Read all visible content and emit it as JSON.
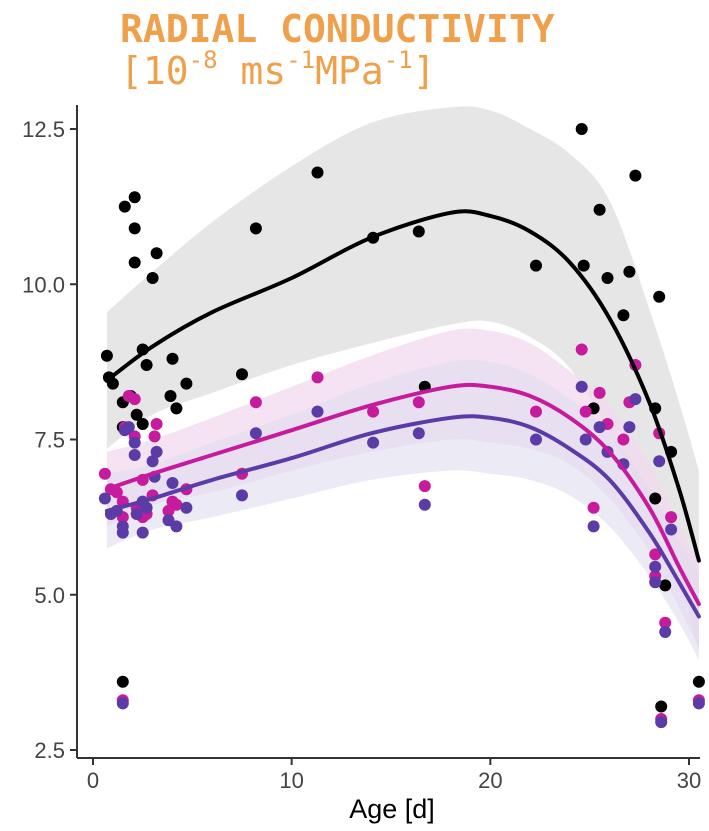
{
  "chart_data": {
    "type": "scatter",
    "title": {
      "main": "RADIAL CONDUCTIVITY",
      "unit_open": "[10",
      "unit_exp1": "-8",
      "unit_mid1": " ms",
      "unit_exp2": "-1",
      "unit_mid2": "MPa",
      "unit_exp3": "-1",
      "unit_close": "]"
    },
    "xlabel": "Age [d]",
    "ylabel": "",
    "xlim": [
      -0.5,
      31
    ],
    "ylim": [
      2.4,
      12.9
    ],
    "xticks": [
      0,
      10,
      20,
      30
    ],
    "yticks": [
      2.5,
      5.0,
      7.5,
      10.0,
      12.5
    ],
    "ytick_labels": [
      "2.5",
      "5.0",
      "7.5",
      "10.0",
      "12.5"
    ],
    "grid": false,
    "legend": "none",
    "colors": {
      "black": "#000000",
      "magenta": "#c51b9c",
      "purple": "#5b3ba6",
      "band_black": "#e6e6e6",
      "band_magenta": "#f2d9ef",
      "band_purple": "#e0dcef",
      "title": "#f0a04b"
    },
    "series": [
      {
        "color": "#000000",
        "points": [
          [
            0.7,
            8.85
          ],
          [
            0.8,
            8.5
          ],
          [
            1.0,
            8.4
          ],
          [
            1.5,
            3.6
          ],
          [
            1.5,
            8.1
          ],
          [
            1.5,
            7.7
          ],
          [
            1.6,
            11.25
          ],
          [
            1.9,
            8.2
          ],
          [
            2.1,
            11.4
          ],
          [
            2.1,
            10.9
          ],
          [
            2.1,
            10.35
          ],
          [
            2.2,
            7.9
          ],
          [
            2.5,
            8.95
          ],
          [
            2.5,
            7.75
          ],
          [
            2.7,
            8.7
          ],
          [
            3.0,
            10.1
          ],
          [
            3.2,
            10.5
          ],
          [
            3.9,
            8.2
          ],
          [
            4.0,
            8.8
          ],
          [
            4.2,
            8.0
          ],
          [
            4.7,
            8.4
          ],
          [
            7.5,
            8.55
          ],
          [
            8.2,
            10.9
          ],
          [
            11.3,
            11.8
          ],
          [
            14.1,
            10.75
          ],
          [
            16.4,
            10.85
          ],
          [
            16.7,
            8.35
          ],
          [
            22.3,
            10.3
          ],
          [
            24.6,
            12.5
          ],
          [
            24.7,
            10.3
          ],
          [
            25.2,
            8.0
          ],
          [
            25.5,
            11.2
          ],
          [
            25.9,
            10.1
          ],
          [
            26.7,
            9.5
          ],
          [
            27.0,
            10.2
          ],
          [
            27.3,
            11.75
          ],
          [
            28.3,
            8.0
          ],
          [
            28.3,
            6.55
          ],
          [
            28.5,
            9.8
          ],
          [
            28.6,
            3.2
          ],
          [
            28.8,
            5.15
          ],
          [
            29.1,
            7.3
          ],
          [
            30.5,
            3.6
          ]
        ],
        "fit": [
          [
            0.7,
            8.45
          ],
          [
            3,
            9.0
          ],
          [
            6,
            9.55
          ],
          [
            10,
            10.1
          ],
          [
            14,
            10.75
          ],
          [
            18,
            11.15
          ],
          [
            20,
            11.1
          ],
          [
            22,
            10.85
          ],
          [
            24,
            10.35
          ],
          [
            26,
            9.45
          ],
          [
            28,
            8.1
          ],
          [
            29.5,
            6.7
          ],
          [
            30.5,
            5.55
          ]
        ],
        "band_upper": [
          [
            0.7,
            9.55
          ],
          [
            3,
            10.2
          ],
          [
            6,
            11.0
          ],
          [
            10,
            11.9
          ],
          [
            14,
            12.6
          ],
          [
            18,
            12.85
          ],
          [
            20,
            12.8
          ],
          [
            22,
            12.5
          ],
          [
            24,
            12.1
          ],
          [
            26,
            11.35
          ],
          [
            28,
            9.6
          ],
          [
            29.5,
            8.1
          ],
          [
            30.5,
            7.0
          ]
        ],
        "band_lower": [
          [
            0.7,
            7.35
          ],
          [
            3,
            7.9
          ],
          [
            6,
            8.25
          ],
          [
            10,
            8.7
          ],
          [
            14,
            9.05
          ],
          [
            18,
            9.35
          ],
          [
            20,
            9.4
          ],
          [
            22,
            9.15
          ],
          [
            24,
            8.65
          ],
          [
            26,
            7.6
          ],
          [
            28,
            6.4
          ],
          [
            29.5,
            5.3
          ],
          [
            30.5,
            4.1
          ]
        ]
      },
      {
        "color": "#c51b9c",
        "points": [
          [
            0.6,
            6.95
          ],
          [
            0.9,
            6.7
          ],
          [
            1.2,
            6.65
          ],
          [
            1.5,
            3.3
          ],
          [
            1.5,
            6.25
          ],
          [
            1.5,
            6.5
          ],
          [
            1.6,
            7.7
          ],
          [
            1.8,
            8.2
          ],
          [
            2.1,
            8.15
          ],
          [
            2.1,
            7.55
          ],
          [
            2.2,
            6.4
          ],
          [
            2.5,
            6.25
          ],
          [
            2.5,
            6.85
          ],
          [
            2.7,
            6.3
          ],
          [
            3.0,
            6.6
          ],
          [
            3.1,
            7.55
          ],
          [
            3.2,
            7.75
          ],
          [
            3.8,
            6.35
          ],
          [
            4.0,
            6.5
          ],
          [
            4.2,
            6.45
          ],
          [
            4.7,
            6.7
          ],
          [
            7.5,
            6.95
          ],
          [
            8.2,
            8.1
          ],
          [
            11.3,
            8.5
          ],
          [
            14.1,
            7.95
          ],
          [
            16.4,
            8.1
          ],
          [
            16.7,
            6.75
          ],
          [
            22.3,
            7.95
          ],
          [
            24.6,
            8.95
          ],
          [
            24.8,
            7.95
          ],
          [
            25.2,
            6.4
          ],
          [
            25.5,
            8.25
          ],
          [
            25.9,
            7.75
          ],
          [
            26.7,
            7.5
          ],
          [
            27.0,
            8.1
          ],
          [
            27.3,
            8.7
          ],
          [
            28.3,
            5.65
          ],
          [
            28.3,
            5.3
          ],
          [
            28.5,
            7.6
          ],
          [
            28.6,
            3.0
          ],
          [
            28.8,
            4.55
          ],
          [
            29.1,
            6.25
          ],
          [
            30.5,
            3.3
          ]
        ],
        "fit": [
          [
            0.7,
            6.7
          ],
          [
            3,
            6.95
          ],
          [
            6,
            7.25
          ],
          [
            10,
            7.65
          ],
          [
            14,
            8.05
          ],
          [
            18,
            8.35
          ],
          [
            20,
            8.35
          ],
          [
            22,
            8.2
          ],
          [
            24,
            7.85
          ],
          [
            26,
            7.3
          ],
          [
            28,
            6.4
          ],
          [
            29.5,
            5.45
          ],
          [
            30.5,
            4.85
          ]
        ],
        "band_upper": [
          [
            0.7,
            7.3
          ],
          [
            3,
            7.5
          ],
          [
            6,
            7.85
          ],
          [
            10,
            8.35
          ],
          [
            14,
            8.85
          ],
          [
            18,
            9.25
          ],
          [
            20,
            9.25
          ],
          [
            22,
            9.05
          ],
          [
            24,
            8.6
          ],
          [
            26,
            8.05
          ],
          [
            28,
            7.1
          ],
          [
            29.5,
            6.1
          ],
          [
            30.5,
            5.55
          ]
        ],
        "band_lower": [
          [
            0.7,
            6.1
          ],
          [
            3,
            6.45
          ],
          [
            6,
            6.65
          ],
          [
            10,
            7.0
          ],
          [
            14,
            7.3
          ],
          [
            18,
            7.5
          ],
          [
            20,
            7.45
          ],
          [
            22,
            7.35
          ],
          [
            24,
            7.1
          ],
          [
            26,
            6.55
          ],
          [
            28,
            5.7
          ],
          [
            29.5,
            4.8
          ],
          [
            30.5,
            4.15
          ]
        ]
      },
      {
        "color": "#5b3ba6",
        "points": [
          [
            0.6,
            6.55
          ],
          [
            0.9,
            6.3
          ],
          [
            1.2,
            6.35
          ],
          [
            1.5,
            3.25
          ],
          [
            1.5,
            6.0
          ],
          [
            1.5,
            6.1
          ],
          [
            1.6,
            7.65
          ],
          [
            1.8,
            7.7
          ],
          [
            2.1,
            7.45
          ],
          [
            2.1,
            7.25
          ],
          [
            2.2,
            6.3
          ],
          [
            2.5,
            6.0
          ],
          [
            2.5,
            6.5
          ],
          [
            2.7,
            6.4
          ],
          [
            3.0,
            7.15
          ],
          [
            3.1,
            6.9
          ],
          [
            3.2,
            7.3
          ],
          [
            3.8,
            6.2
          ],
          [
            4.0,
            6.8
          ],
          [
            4.2,
            6.1
          ],
          [
            4.7,
            6.4
          ],
          [
            7.5,
            6.6
          ],
          [
            8.2,
            7.6
          ],
          [
            11.3,
            7.95
          ],
          [
            14.1,
            7.45
          ],
          [
            16.4,
            7.6
          ],
          [
            16.7,
            6.45
          ],
          [
            22.3,
            7.5
          ],
          [
            24.6,
            8.35
          ],
          [
            24.8,
            7.5
          ],
          [
            25.2,
            6.1
          ],
          [
            25.5,
            7.7
          ],
          [
            25.9,
            7.3
          ],
          [
            26.7,
            7.1
          ],
          [
            27.0,
            7.7
          ],
          [
            27.3,
            8.15
          ],
          [
            28.3,
            5.45
          ],
          [
            28.3,
            5.2
          ],
          [
            28.5,
            7.15
          ],
          [
            28.6,
            2.95
          ],
          [
            28.8,
            4.4
          ],
          [
            29.1,
            6.05
          ],
          [
            30.5,
            3.25
          ]
        ],
        "fit": [
          [
            0.7,
            6.35
          ],
          [
            3,
            6.55
          ],
          [
            6,
            6.85
          ],
          [
            10,
            7.2
          ],
          [
            14,
            7.6
          ],
          [
            18,
            7.85
          ],
          [
            20,
            7.85
          ],
          [
            22,
            7.7
          ],
          [
            24,
            7.35
          ],
          [
            26,
            6.85
          ],
          [
            28,
            6.0
          ],
          [
            29.5,
            5.2
          ],
          [
            30.5,
            4.65
          ]
        ],
        "band_upper": [
          [
            0.7,
            6.95
          ],
          [
            3,
            7.1
          ],
          [
            6,
            7.45
          ],
          [
            10,
            7.9
          ],
          [
            14,
            8.4
          ],
          [
            18,
            8.75
          ],
          [
            20,
            8.75
          ],
          [
            22,
            8.55
          ],
          [
            24,
            8.15
          ],
          [
            26,
            7.6
          ],
          [
            28,
            6.7
          ],
          [
            29.5,
            5.85
          ],
          [
            30.5,
            5.35
          ]
        ],
        "band_lower": [
          [
            0.7,
            5.75
          ],
          [
            3,
            6.05
          ],
          [
            6,
            6.25
          ],
          [
            10,
            6.55
          ],
          [
            14,
            6.85
          ],
          [
            18,
            7.0
          ],
          [
            20,
            6.95
          ],
          [
            22,
            6.85
          ],
          [
            24,
            6.6
          ],
          [
            26,
            6.1
          ],
          [
            28,
            5.3
          ],
          [
            29.5,
            4.55
          ],
          [
            30.5,
            3.95
          ]
        ]
      }
    ]
  }
}
